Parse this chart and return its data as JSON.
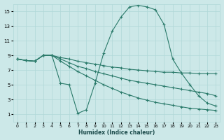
{
  "xlabel": "Humidex (Indice chaleur)",
  "bg_color": "#cce8e8",
  "grid_color": "#b0d8d8",
  "line_color": "#2a7a6a",
  "xlim": [
    -0.5,
    23.5
  ],
  "ylim": [
    0,
    16
  ],
  "xticks": [
    0,
    1,
    2,
    3,
    4,
    5,
    6,
    7,
    8,
    9,
    10,
    11,
    12,
    13,
    14,
    15,
    16,
    17,
    18,
    19,
    20,
    21,
    22,
    23
  ],
  "yticks": [
    1,
    3,
    5,
    7,
    9,
    11,
    13,
    15
  ],
  "series": [
    {
      "x": [
        0,
        1,
        2,
        3,
        4,
        5,
        6,
        7,
        8,
        9,
        10,
        11,
        12,
        13,
        14,
        15,
        16,
        17,
        18,
        19,
        20,
        21,
        22,
        23
      ],
      "y": [
        8.5,
        8.3,
        8.2,
        9.0,
        9.0,
        5.2,
        5.0,
        1.1,
        1.6,
        5.2,
        9.3,
        12.3,
        14.2,
        15.6,
        15.8,
        15.6,
        15.2,
        13.2,
        8.5,
        6.6,
        5.0,
        3.5,
        2.5,
        2.1
      ]
    },
    {
      "x": [
        0,
        1,
        2,
        3,
        4,
        5,
        6,
        7,
        8,
        9,
        10,
        11,
        12,
        13,
        14,
        15,
        16,
        17,
        18,
        19,
        20,
        21,
        22,
        23
      ],
      "y": [
        8.5,
        8.3,
        8.2,
        9.0,
        9.0,
        8.7,
        8.5,
        8.2,
        8.0,
        7.8,
        7.6,
        7.4,
        7.3,
        7.1,
        7.0,
        6.9,
        6.8,
        6.7,
        6.7,
        6.6,
        6.6,
        6.5,
        6.5,
        6.5
      ]
    },
    {
      "x": [
        0,
        1,
        2,
        3,
        4,
        5,
        6,
        7,
        8,
        9,
        10,
        11,
        12,
        13,
        14,
        15,
        16,
        17,
        18,
        19,
        20,
        21,
        22,
        23
      ],
      "y": [
        8.5,
        8.3,
        8.2,
        9.0,
        9.0,
        8.5,
        8.0,
        7.5,
        7.2,
        6.8,
        6.5,
        6.2,
        5.9,
        5.6,
        5.4,
        5.2,
        5.0,
        4.8,
        4.6,
        4.4,
        4.2,
        4.0,
        3.8,
        3.5
      ]
    },
    {
      "x": [
        0,
        1,
        2,
        3,
        4,
        5,
        6,
        7,
        8,
        9,
        10,
        11,
        12,
        13,
        14,
        15,
        16,
        17,
        18,
        19,
        20,
        21,
        22,
        23
      ],
      "y": [
        8.5,
        8.3,
        8.2,
        9.0,
        9.0,
        8.2,
        7.5,
        6.8,
        6.2,
        5.6,
        5.0,
        4.5,
        4.0,
        3.6,
        3.2,
        2.9,
        2.6,
        2.4,
        2.2,
        2.0,
        1.8,
        1.7,
        1.6,
        1.5
      ]
    }
  ]
}
